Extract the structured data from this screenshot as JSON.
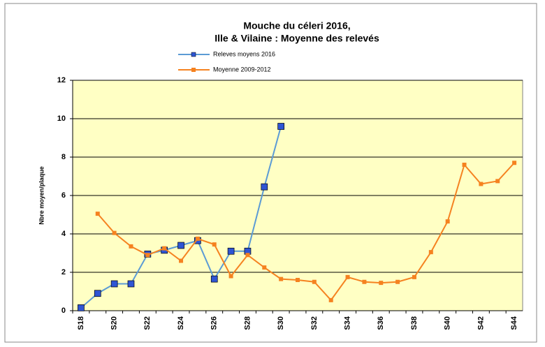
{
  "chart_data": {
    "type": "line",
    "title": "Mouche du céleri 2016,",
    "subtitle": "Ille & Vilaine : Moyenne des relevés",
    "ylabel": "Nbre moyen/plaque",
    "categories": [
      "S18",
      null,
      "S20",
      null,
      "S22",
      null,
      "S24",
      null,
      "S26",
      null,
      "S28",
      null,
      "S30",
      null,
      "S32",
      null,
      "S34",
      null,
      "S36",
      null,
      "S38",
      null,
      "S40",
      null,
      "S42",
      null,
      "S44"
    ],
    "series": [
      {
        "name": "Releves moyens 2016",
        "color": "#5b9bd5",
        "marker_color": "#2f55d4",
        "values": [
          0.15,
          0.9,
          1.4,
          1.4,
          2.95,
          3.15,
          3.4,
          3.65,
          1.65,
          3.1,
          3.1,
          6.45,
          9.6,
          null,
          null,
          null,
          null,
          null,
          null,
          null,
          null,
          null,
          null,
          null,
          null,
          null,
          null
        ]
      },
      {
        "name": "Moyenne 2009-2012",
        "color": "#f58220",
        "marker_color": "#f58220",
        "values": [
          null,
          5.05,
          4.05,
          3.35,
          2.9,
          3.25,
          2.6,
          3.75,
          3.45,
          1.8,
          2.9,
          2.25,
          1.65,
          1.6,
          1.5,
          0.55,
          1.75,
          1.5,
          1.45,
          1.5,
          1.75,
          3.05,
          4.65,
          7.6,
          6.6,
          6.75,
          7.7
        ]
      }
    ],
    "ylim": [
      0,
      12
    ],
    "yticks": [
      0,
      2,
      4,
      6,
      8,
      10,
      12
    ],
    "grid": true
  }
}
